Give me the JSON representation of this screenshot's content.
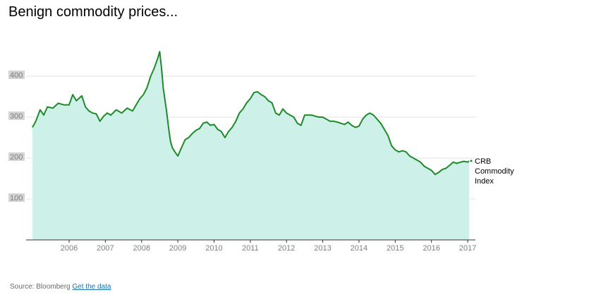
{
  "title": "Benign commodity prices...",
  "footer": {
    "source_text": "Source: Bloomberg",
    "link_text": "Get the data"
  },
  "colors": {
    "line": "#1e8a2a",
    "area": "#cdf0e9",
    "grid": "#e3e3e3",
    "axis": "#333333",
    "label_bg": "#d4d4d4"
  },
  "chart_data": {
    "type": "area",
    "title": "Benign commodity prices...",
    "series": [
      {
        "name": "CRB Commodity Index",
        "label_lines": [
          "CRB",
          "Commodity",
          "Index"
        ],
        "x": [
          2005.0,
          2005.08,
          2005.2,
          2005.3,
          2005.4,
          2005.55,
          2005.7,
          2005.85,
          2006.0,
          2006.1,
          2006.2,
          2006.35,
          2006.45,
          2006.55,
          2006.65,
          2006.75,
          2006.85,
          2006.95,
          2007.05,
          2007.15,
          2007.3,
          2007.45,
          2007.6,
          2007.75,
          2007.85,
          2007.95,
          2008.05,
          2008.15,
          2008.25,
          2008.35,
          2008.45,
          2008.5,
          2008.55,
          2008.6,
          2008.68,
          2008.75,
          2008.8,
          2008.85,
          2008.92,
          2009.0,
          2009.1,
          2009.2,
          2009.3,
          2009.4,
          2009.5,
          2009.6,
          2009.7,
          2009.8,
          2009.9,
          2010.0,
          2010.1,
          2010.2,
          2010.3,
          2010.4,
          2010.5,
          2010.6,
          2010.7,
          2010.8,
          2010.9,
          2011.0,
          2011.1,
          2011.2,
          2011.3,
          2011.4,
          2011.5,
          2011.6,
          2011.7,
          2011.8,
          2011.9,
          2012.0,
          2012.1,
          2012.2,
          2012.3,
          2012.4,
          2012.5,
          2012.6,
          2012.7,
          2012.8,
          2012.9,
          2013.0,
          2013.1,
          2013.2,
          2013.3,
          2013.4,
          2013.5,
          2013.6,
          2013.7,
          2013.8,
          2013.9,
          2014.0,
          2014.1,
          2014.2,
          2014.3,
          2014.4,
          2014.5,
          2014.6,
          2014.7,
          2014.8,
          2014.9,
          2015.0,
          2015.1,
          2015.2,
          2015.3,
          2015.4,
          2015.5,
          2015.6,
          2015.7,
          2015.8,
          2015.9,
          2016.0,
          2016.1,
          2016.2,
          2016.3,
          2016.4,
          2016.5,
          2016.6,
          2016.7,
          2016.8,
          2016.9,
          2017.0,
          2017.05
        ],
        "values": [
          275,
          290,
          318,
          305,
          325,
          322,
          334,
          330,
          330,
          355,
          340,
          352,
          325,
          315,
          310,
          308,
          290,
          302,
          310,
          305,
          318,
          310,
          322,
          315,
          330,
          345,
          355,
          372,
          400,
          420,
          445,
          460,
          420,
          370,
          320,
          270,
          240,
          225,
          215,
          205,
          225,
          245,
          250,
          260,
          268,
          272,
          285,
          288,
          280,
          282,
          270,
          265,
          250,
          265,
          275,
          290,
          310,
          320,
          335,
          345,
          360,
          362,
          355,
          350,
          340,
          335,
          310,
          305,
          320,
          310,
          305,
          300,
          285,
          280,
          305,
          305,
          305,
          302,
          300,
          300,
          295,
          290,
          290,
          288,
          285,
          282,
          288,
          280,
          275,
          278,
          295,
          305,
          310,
          305,
          295,
          285,
          270,
          255,
          230,
          220,
          215,
          218,
          215,
          205,
          200,
          195,
          190,
          180,
          175,
          170,
          160,
          165,
          172,
          175,
          182,
          190,
          187,
          190,
          192,
          190,
          193
        ]
      }
    ],
    "xlim": [
      2005.0,
      2017.2
    ],
    "ylim": [
      0,
      480
    ],
    "x_ticks": [
      2006,
      2007,
      2008,
      2009,
      2010,
      2011,
      2012,
      2013,
      2014,
      2015,
      2016,
      2017
    ],
    "x_tick_labels": [
      "2006",
      "2007",
      "2008",
      "2009",
      "2010",
      "2011",
      "2012",
      "2013",
      "2014",
      "2015",
      "2016",
      "2017"
    ],
    "y_ticks": [
      100,
      200,
      300,
      400
    ],
    "y_tick_labels": [
      "100",
      "200",
      "300",
      "400"
    ],
    "grid": true,
    "legend": "direct label at line end"
  }
}
